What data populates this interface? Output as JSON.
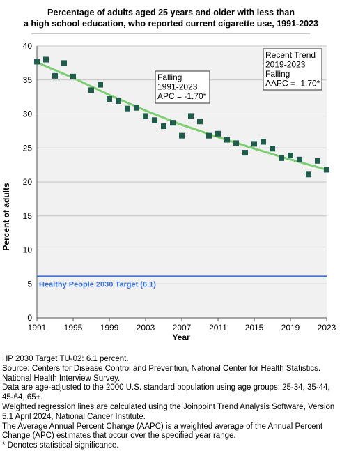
{
  "title_line1": "Percentage of adults aged 25 years and older with less than",
  "title_line2": "a high school education, who reported current cigarette use, 1991-2023",
  "chart_data": {
    "type": "scatter",
    "xlabel": "Year",
    "ylabel": "Percent of adults",
    "xlim": [
      1991,
      2023
    ],
    "ylim": [
      0,
      40
    ],
    "x_ticks": [
      1991,
      1995,
      1999,
      2003,
      2007,
      2011,
      2015,
      2019,
      2023
    ],
    "y_ticks": [
      0,
      5,
      10,
      15,
      20,
      25,
      30,
      35,
      40
    ],
    "grid": "horizontal",
    "series": [
      {
        "color": "#1f5c4c",
        "marker": "square",
        "points": [
          [
            1991,
            37.7
          ],
          [
            1992,
            38.0
          ],
          [
            1993,
            35.6
          ],
          [
            1994,
            37.5
          ],
          [
            1995,
            35.5
          ],
          [
            1997,
            33.5
          ],
          [
            1998,
            34.3
          ],
          [
            1999,
            32.2
          ],
          [
            2000,
            31.9
          ],
          [
            2001,
            30.8
          ],
          [
            2002,
            30.9
          ],
          [
            2003,
            29.7
          ],
          [
            2004,
            29.1
          ],
          [
            2005,
            28.2
          ],
          [
            2006,
            28.7
          ],
          [
            2007,
            26.8
          ],
          [
            2008,
            29.7
          ],
          [
            2009,
            28.9
          ],
          [
            2010,
            26.8
          ],
          [
            2011,
            27.1
          ],
          [
            2012,
            26.2
          ],
          [
            2013,
            25.7
          ],
          [
            2014,
            24.3
          ],
          [
            2015,
            25.6
          ],
          [
            2016,
            25.9
          ],
          [
            2017,
            24.9
          ],
          [
            2018,
            23.5
          ],
          [
            2019,
            23.9
          ],
          [
            2020,
            23.3
          ],
          [
            2021,
            21.1
          ],
          [
            2022,
            23.1
          ],
          [
            2023,
            21.8
          ]
        ]
      }
    ],
    "trend_line": {
      "color": "#7dcd73",
      "points": [
        [
          1991,
          37.6
        ],
        [
          1995,
          35.3
        ],
        [
          1999,
          32.8
        ],
        [
          2003,
          30.5
        ],
        [
          2007,
          28.4
        ],
        [
          2011,
          26.6
        ],
        [
          2015,
          24.9
        ],
        [
          2019,
          23.3
        ],
        [
          2023,
          21.8
        ]
      ]
    },
    "target_line": {
      "value": 6.1,
      "color": "#3a72d8",
      "label": "Healthy People 2030 Target (6.1)"
    },
    "annotations": [
      {
        "lines": [
          "Falling",
          "1991-2023",
          "APC = -1.70*"
        ]
      },
      {
        "lines": [
          "Recent Trend",
          "2019-2023",
          "Falling",
          "AAPC = -1.70*"
        ]
      }
    ]
  },
  "footnotes": [
    "HP 2030 Target TU-02: 6.1 percent.",
    "Source: Centers for Disease Control and Prevention, National Center for Health Statistics. National Health Interview Survey.",
    "Data are age-adjusted to the 2000 U.S. standard population using age groups: 25-34, 35-44, 45-64, 65+.",
    "Weighted regression lines are calculated using the Joinpoint Trend Analysis Software, Version 5.1 April 2024, National Cancer Institute.",
    "The Average Annual Percent Change (AAPC) is a weighted average of the Annual Percent Change (APC) estimates that occur over the specified year range.",
    "* Denotes statistical significance."
  ]
}
